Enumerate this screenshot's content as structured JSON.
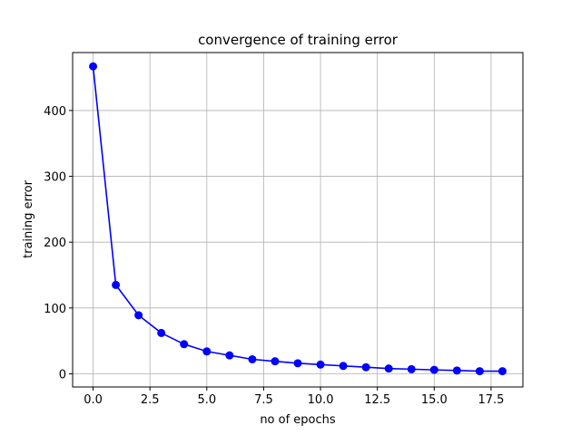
{
  "chart_data": {
    "type": "line",
    "title": "convergence of training error",
    "xlabel": "no of epochs",
    "ylabel": "training error",
    "xlim": [
      -0.9,
      18.9
    ],
    "ylim": [
      -20,
      488
    ],
    "xticks": [
      0.0,
      2.5,
      5.0,
      7.5,
      10.0,
      12.5,
      15.0,
      17.5
    ],
    "xtick_labels": [
      "0.0",
      "2.5",
      "5.0",
      "7.5",
      "10.0",
      "12.5",
      "15.0",
      "17.5"
    ],
    "yticks": [
      0,
      100,
      200,
      300,
      400
    ],
    "ytick_labels": [
      "0",
      "100",
      "200",
      "300",
      "400"
    ],
    "grid": true,
    "series": [
      {
        "color": "#0000ff",
        "marker": "circle",
        "x": [
          0,
          1,
          2,
          3,
          4,
          5,
          6,
          7,
          8,
          9,
          10,
          11,
          12,
          13,
          14,
          15,
          16,
          17,
          18
        ],
        "y": [
          467,
          135,
          89,
          62,
          45,
          34,
          28,
          22,
          19,
          16,
          14,
          12,
          10,
          8,
          7,
          6,
          5,
          4,
          4
        ]
      }
    ]
  }
}
